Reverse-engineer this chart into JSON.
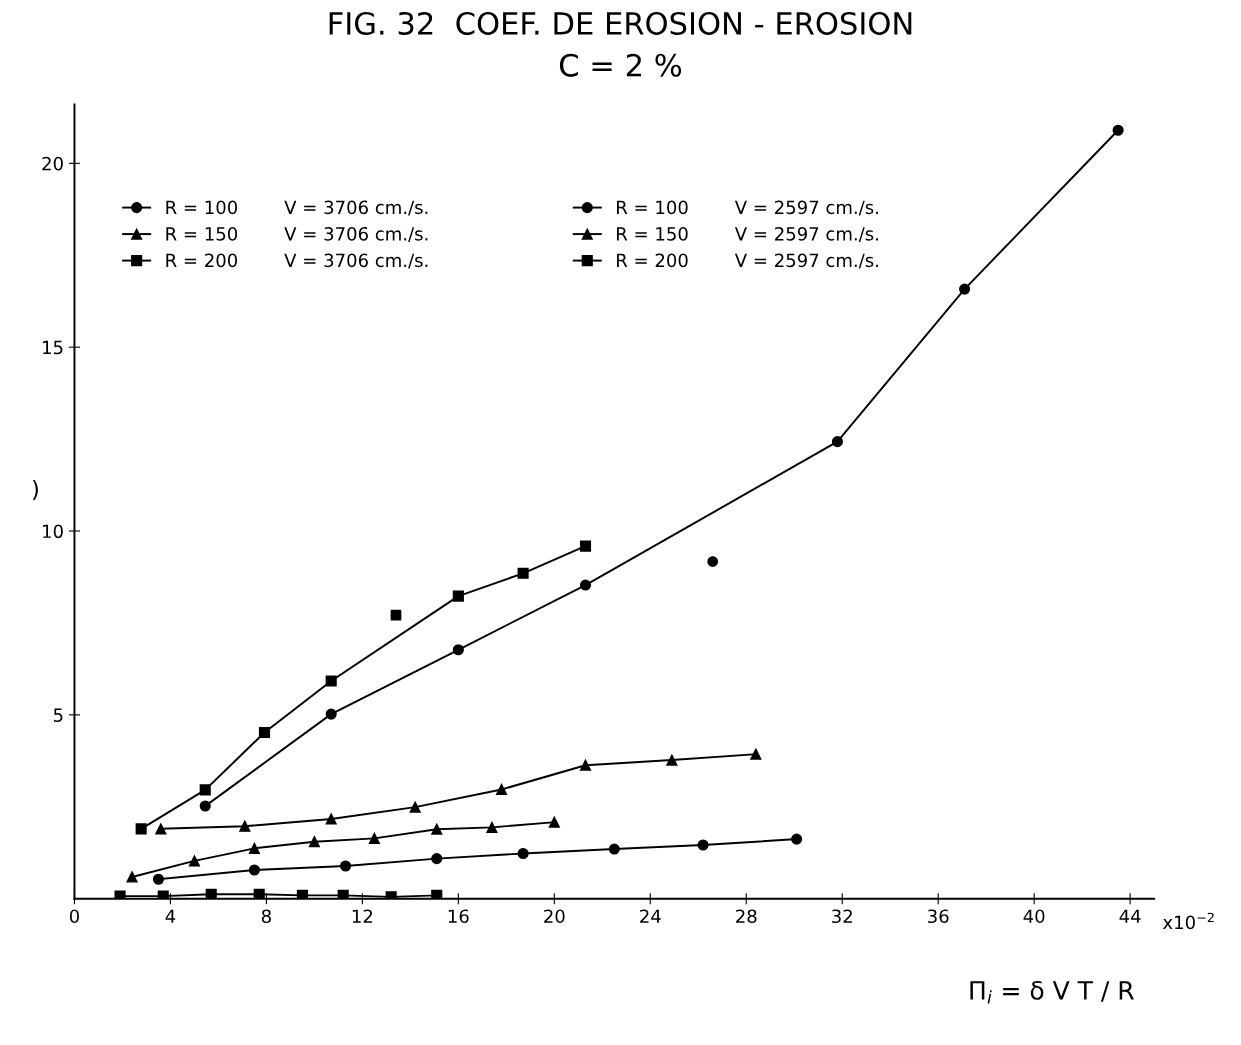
{
  "chart_data": {
    "type": "line",
    "title": "FIG. 32  COEF. DE EROSION - EROSION",
    "subtitle": "C = 2 %",
    "ylabel": ")",
    "xlabel": "Π$_{i}$ = δ V T / R",
    "annotations": [
      "x10$^{−2}$"
    ],
    "xlim": [
      0,
      45
    ],
    "ylim": [
      0,
      21.6
    ],
    "xticks": [
      0,
      4,
      8,
      12,
      16,
      20,
      24,
      28,
      32,
      36,
      40,
      44
    ],
    "yticks": [
      5,
      10,
      15,
      20
    ],
    "grid": false,
    "legend": "top left",
    "line_style": "solid",
    "series": [
      {
        "name": "R = 100        V = 3706 cm./s.",
        "color": "#000000",
        "marker": "circle",
        "x": [
          5.45,
          10.7,
          16.0,
          21.3,
          31.8,
          37.1,
          43.5
        ],
        "values": [
          2.52,
          5.02,
          6.77,
          8.53,
          12.43,
          16.58,
          20.9
        ]
      },
      {
        "name": "R = 150        V = 3706 cm./s.",
        "color": "#000000",
        "marker": "triangle",
        "x": [
          3.6,
          7.1,
          10.7,
          14.2,
          17.8,
          21.3,
          24.9,
          28.4
        ],
        "values": [
          1.9,
          1.97,
          2.17,
          2.49,
          2.97,
          3.63,
          3.77,
          3.93
        ]
      },
      {
        "name": "R = 200        V = 3706 cm./s.",
        "color": "#000000",
        "marker": "square",
        "x": [
          2.78,
          5.45,
          7.92,
          10.7,
          16.0,
          18.7,
          21.3
        ],
        "values": [
          1.9,
          2.96,
          4.52,
          5.92,
          8.23,
          8.85,
          9.59
        ]
      },
      {
        "name": "R = 100        V = 2597 cm./s.",
        "color": "#000000",
        "marker": "circle",
        "x": [
          3.5,
          7.5,
          11.3,
          15.1,
          18.7,
          22.5,
          26.2,
          30.1
        ],
        "values": [
          0.53,
          0.78,
          0.89,
          1.09,
          1.23,
          1.35,
          1.46,
          1.62
        ]
      },
      {
        "name": "R = 150        V = 2597 cm./s.",
        "color": "#000000",
        "marker": "triangle",
        "x": [
          2.4,
          5.0,
          7.5,
          10.0,
          12.5,
          15.1,
          17.4,
          20.0
        ],
        "values": [
          0.59,
          1.03,
          1.37,
          1.55,
          1.64,
          1.89,
          1.94,
          2.08
        ]
      },
      {
        "name": "R = 200        V = 2597 cm./s.",
        "color": "#000000",
        "marker": "square",
        "x": [
          1.9,
          3.7,
          5.7,
          7.7,
          9.5,
          11.2,
          13.2,
          15.1
        ],
        "values": [
          0.07,
          0.07,
          0.12,
          0.12,
          0.09,
          0.09,
          0.05,
          0.09
        ]
      },
      {
        "type": "scatter",
        "color": "#000000",
        "marker": "circle",
        "x": [
          26.6
        ],
        "values": [
          9.17
        ]
      },
      {
        "type": "scatter",
        "color": "#000000",
        "marker": "square",
        "x": [
          13.4
        ],
        "values": [
          7.71
        ]
      }
    ]
  }
}
